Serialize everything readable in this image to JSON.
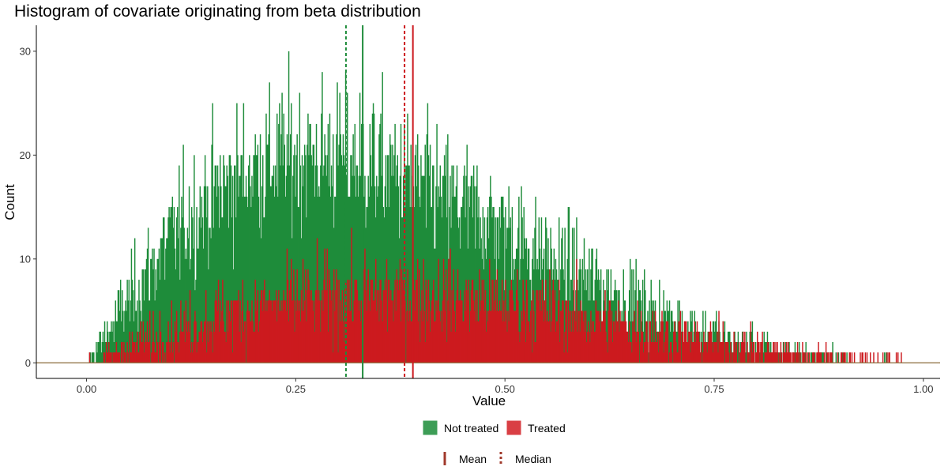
{
  "chart_data": {
    "type": "histogram",
    "title": "Histogram of covariate originating from beta distribution",
    "xlabel": "Value",
    "ylabel": "Count",
    "xlim": [
      -0.06,
      1.02
    ],
    "ylim": [
      -1.5,
      32.5
    ],
    "x_ticks": [
      0,
      0.25,
      0.5,
      0.75,
      1
    ],
    "x_tick_labels": [
      "0.00",
      "0.25",
      "0.50",
      "0.75",
      "1.00"
    ],
    "y_ticks": [
      0,
      10,
      20,
      30
    ],
    "y_tick_labels": [
      "0",
      "10",
      "20",
      "30"
    ],
    "grid": false,
    "bin_width": 0.001,
    "series": [
      {
        "name": "Not treated",
        "color": "#1e8c3a",
        "mean": 0.33,
        "median": 0.31,
        "shape": "beta-like, peak about 17-25 counts near x=0.25-0.35, maximum spikes about 30 near x=0.30-0.33, tail to about 0.96",
        "envelope": [
          [
            0.0,
            0
          ],
          [
            0.01,
            1
          ],
          [
            0.05,
            6
          ],
          [
            0.1,
            12
          ],
          [
            0.15,
            16
          ],
          [
            0.2,
            19
          ],
          [
            0.25,
            20
          ],
          [
            0.3,
            20
          ],
          [
            0.35,
            19
          ],
          [
            0.4,
            17
          ],
          [
            0.45,
            15
          ],
          [
            0.5,
            13
          ],
          [
            0.55,
            10
          ],
          [
            0.6,
            8
          ],
          [
            0.65,
            6
          ],
          [
            0.7,
            4
          ],
          [
            0.75,
            2.6
          ],
          [
            0.8,
            1.4
          ],
          [
            0.85,
            0.7
          ],
          [
            0.9,
            0.3
          ],
          [
            0.96,
            0.1
          ],
          [
            1.0,
            0
          ]
        ]
      },
      {
        "name": "Treated",
        "color": "#cc1a1f",
        "mean": 0.39,
        "median": 0.38,
        "shape": "broader, peak about 5-10 counts across x=0.25-0.55, maximum spikes about 18 near x=0.31",
        "envelope": [
          [
            0.0,
            0
          ],
          [
            0.02,
            0.5
          ],
          [
            0.05,
            1.6
          ],
          [
            0.1,
            3
          ],
          [
            0.15,
            4.3
          ],
          [
            0.2,
            5.3
          ],
          [
            0.25,
            6
          ],
          [
            0.3,
            6.4
          ],
          [
            0.35,
            6.6
          ],
          [
            0.4,
            6.5
          ],
          [
            0.45,
            6.2
          ],
          [
            0.5,
            5.7
          ],
          [
            0.55,
            5.1
          ],
          [
            0.6,
            4.4
          ],
          [
            0.65,
            3.6
          ],
          [
            0.7,
            2.8
          ],
          [
            0.75,
            2
          ],
          [
            0.8,
            1.4
          ],
          [
            0.85,
            0.9
          ],
          [
            0.9,
            0.5
          ],
          [
            0.96,
            0.2
          ],
          [
            1.0,
            0
          ]
        ]
      }
    ],
    "reference_lines": [
      {
        "series": "Not treated",
        "stat": "Mean",
        "x": 0.33,
        "style": "solid"
      },
      {
        "series": "Not treated",
        "stat": "Median",
        "x": 0.31,
        "style": "dashed"
      },
      {
        "series": "Treated",
        "stat": "Mean",
        "x": 0.39,
        "style": "solid"
      },
      {
        "series": "Treated",
        "stat": "Median",
        "x": 0.38,
        "style": "dashed"
      }
    ],
    "legend": {
      "position": "bottom",
      "fill_entries": [
        {
          "label": "Not treated",
          "color": "#3d9d56"
        },
        {
          "label": "Treated",
          "color": "#d93f44"
        }
      ],
      "line_entries": [
        {
          "label": "Mean",
          "style": "solid",
          "color": "#a0392b"
        },
        {
          "label": "Median",
          "style": "dashed",
          "color": "#a0392b"
        }
      ]
    }
  }
}
